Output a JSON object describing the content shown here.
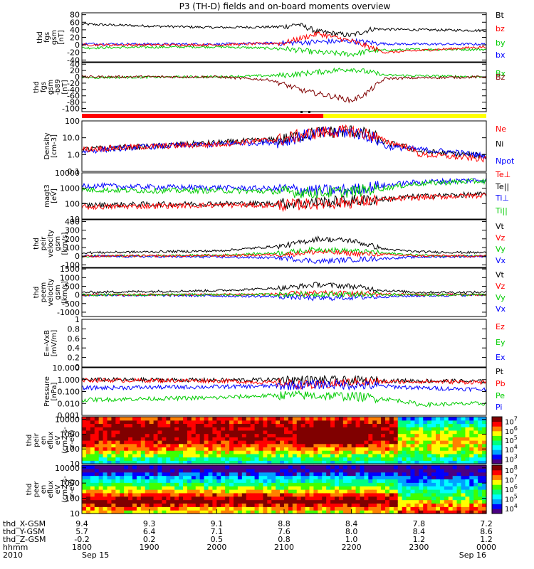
{
  "title": "P3 (TH-D) fields and on-board moments overview",
  "chart_data": [
    {
      "id": "fgs",
      "type": "line",
      "ylabel": [
        "thd",
        "fgs",
        "gsm",
        "[nT]"
      ],
      "yticks": [
        -40,
        -20,
        0,
        20,
        40,
        60,
        80
      ],
      "ylim": [
        -45,
        85
      ],
      "legend": [
        {
          "label": "Bt",
          "color": "#000000"
        },
        {
          "label": "bz",
          "color": "#ff0000"
        },
        {
          "label": "by",
          "color": "#00cc00"
        },
        {
          "label": "bx",
          "color": "#0000ff"
        }
      ],
      "series": [
        {
          "name": "Bt",
          "color": "#000000",
          "x": [
            18.0,
            19.0,
            20.0,
            21.0,
            21.2,
            21.5,
            22.0,
            22.3,
            23.0,
            24.0
          ],
          "values": [
            55,
            50,
            46,
            48,
            55,
            35,
            25,
            42,
            40,
            38
          ]
        },
        {
          "name": "by",
          "color": "#00cc00",
          "x": [
            18.0,
            19.0,
            20.0,
            21.0,
            21.5,
            22.0,
            22.3,
            23.0,
            24.0
          ],
          "values": [
            -8,
            -6,
            -5,
            -10,
            -20,
            -25,
            -15,
            -12,
            -12
          ]
        },
        {
          "name": "bx",
          "color": "#0000ff",
          "x": [
            18.0,
            19.0,
            20.0,
            21.0,
            21.5,
            22.0,
            22.5,
            23.0,
            24.0
          ],
          "values": [
            3,
            2,
            2,
            5,
            8,
            10,
            3,
            2,
            2
          ]
        },
        {
          "name": "bz",
          "color": "#ff0000",
          "x": [
            18.0,
            20.0,
            21.0,
            21.5,
            22.0,
            22.5,
            24.0
          ],
          "values": [
            0,
            0,
            5,
            30,
            10,
            -20,
            -5
          ]
        }
      ]
    },
    {
      "id": "fgs-dsl",
      "type": "line",
      "ylabel": [
        "thd",
        "fgs",
        "gsm",
        "-b89",
        "[nT]"
      ],
      "yticks": [
        -100,
        -80,
        -60,
        -40,
        -20,
        0,
        20,
        40
      ],
      "ylim": [
        -110,
        45
      ],
      "legend": [
        {
          "label": "Bx",
          "color": "#00cc00"
        },
        {
          "label": "Bz",
          "color": "#800000"
        }
      ],
      "series": [
        {
          "name": "Bx",
          "color": "#00cc00",
          "x": [
            18.0,
            20.0,
            21.0,
            21.5,
            22.0,
            22.5,
            24.0
          ],
          "values": [
            -2,
            0,
            5,
            15,
            25,
            5,
            0
          ]
        },
        {
          "name": "Bz",
          "color": "#800000",
          "x": [
            18.0,
            20.0,
            20.8,
            21.3,
            21.8,
            22.0,
            22.2,
            22.5,
            24.0
          ],
          "values": [
            0,
            0,
            -10,
            -45,
            -65,
            -75,
            -55,
            -5,
            0
          ]
        }
      ]
    },
    {
      "id": "density",
      "type": "line",
      "scale": "log",
      "ylabel": [
        "Density",
        "[cm-3]"
      ],
      "yticks": [
        0.1,
        1.0,
        10.0,
        100.0
      ],
      "ylim": [
        0.1,
        100
      ],
      "legend": [
        {
          "label": "Ne",
          "color": "#ff0000"
        },
        {
          "label": "Ni",
          "color": "#000000"
        },
        {
          "label": "Npot",
          "color": "#0000ff"
        }
      ],
      "series": [
        {
          "name": "Ni",
          "color": "#000000",
          "x": [
            18.0,
            19.0,
            20.0,
            21.0,
            21.5,
            22.0,
            22.5,
            23.0,
            24.0
          ],
          "values": [
            2,
            3,
            5,
            8,
            20,
            25,
            5,
            1.5,
            0.8
          ]
        },
        {
          "name": "Npot",
          "color": "#0000ff",
          "x": [
            18.0,
            19.0,
            20.0,
            21.0,
            21.5,
            22.0,
            22.5,
            23.0,
            24.0
          ],
          "values": [
            1.5,
            3,
            4,
            6,
            18,
            22,
            3,
            2,
            0.8
          ]
        },
        {
          "name": "Ne",
          "color": "#ff0000",
          "x": [
            18.0,
            19.0,
            20.0,
            21.0,
            21.5,
            22.0,
            22.5,
            23.0,
            24.0
          ],
          "values": [
            2,
            3,
            4,
            8,
            20,
            25,
            6,
            1,
            0.5
          ]
        }
      ]
    },
    {
      "id": "temperature",
      "type": "line",
      "scale": "log",
      "ylabel": [
        "magt3",
        "[eV]"
      ],
      "yticks": [
        10,
        100,
        1000,
        10000
      ],
      "ylim": [
        10,
        10000
      ],
      "legend": [
        {
          "label": "Te⊥",
          "color": "#ff0000"
        },
        {
          "label": "Te||",
          "color": "#000000"
        },
        {
          "label": "Ti⊥",
          "color": "#0000ff"
        },
        {
          "label": "Ti||",
          "color": "#00cc00"
        }
      ],
      "series": [
        {
          "name": "Ti⊥",
          "color": "#0000ff",
          "x": [
            18.0,
            19.0,
            20.0,
            21.0,
            21.5,
            22.0,
            22.5,
            23.0,
            24.0
          ],
          "values": [
            1500,
            1200,
            1100,
            900,
            700,
            800,
            1500,
            2500,
            3500
          ]
        },
        {
          "name": "Ti||",
          "color": "#00cc00",
          "x": [
            18.0,
            19.0,
            20.0,
            21.0,
            21.5,
            22.0,
            22.5,
            23.0,
            24.0
          ],
          "values": [
            800,
            700,
            700,
            600,
            500,
            600,
            1000,
            2000,
            3000
          ]
        },
        {
          "name": "Te||",
          "color": "#000000",
          "x": [
            18.0,
            19.0,
            20.0,
            21.0,
            21.5,
            22.0,
            22.5,
            23.0,
            24.0
          ],
          "values": [
            80,
            90,
            100,
            100,
            120,
            150,
            200,
            300,
            400
          ]
        },
        {
          "name": "Te⊥",
          "color": "#ff0000",
          "x": [
            18.0,
            19.0,
            20.0,
            21.0,
            21.5,
            22.0,
            22.5,
            23.0,
            24.0
          ],
          "values": [
            60,
            70,
            80,
            80,
            100,
            120,
            180,
            250,
            350
          ]
        }
      ]
    },
    {
      "id": "peir-velocity",
      "type": "line",
      "ylabel": [
        "thd",
        "peir",
        "velocity",
        "gsm",
        "[km/s]"
      ],
      "yticks": [
        -100,
        0,
        100,
        200,
        300,
        400
      ],
      "ylim": [
        -130,
        420
      ],
      "legend": [
        {
          "label": "Vt",
          "color": "#000000"
        },
        {
          "label": "Vz",
          "color": "#ff0000"
        },
        {
          "label": "Vy",
          "color": "#00cc00"
        },
        {
          "label": "Vx",
          "color": "#0000ff"
        }
      ],
      "series": [
        {
          "name": "Vt",
          "color": "#000000",
          "x": [
            18.0,
            19.0,
            20.0,
            21.0,
            21.5,
            22.0,
            22.5,
            23.0,
            24.0
          ],
          "values": [
            40,
            50,
            60,
            120,
            200,
            180,
            80,
            50,
            40
          ]
        },
        {
          "name": "Vy",
          "color": "#00cc00",
          "x": [
            18.0,
            20.0,
            21.0,
            21.5,
            22.0,
            23.0,
            24.0
          ],
          "values": [
            0,
            10,
            40,
            80,
            60,
            10,
            0
          ]
        },
        {
          "name": "Vx",
          "color": "#0000ff",
          "x": [
            18.0,
            20.0,
            21.0,
            21.5,
            22.0,
            23.0,
            24.0
          ],
          "values": [
            0,
            -10,
            -20,
            -60,
            -40,
            -10,
            0
          ]
        },
        {
          "name": "Vz",
          "color": "#ff0000",
          "x": [
            18.0,
            20.0,
            21.0,
            21.5,
            22.0,
            23.0,
            24.0
          ],
          "values": [
            0,
            5,
            20,
            50,
            30,
            5,
            0
          ]
        }
      ]
    },
    {
      "id": "peem-velocity",
      "type": "line",
      "ylabel": [
        "thd",
        "peem",
        "velocity",
        "gsm",
        "[km/s]"
      ],
      "yticks": [
        -1000,
        -500,
        0,
        500,
        1000,
        1500
      ],
      "ylim": [
        -1250,
        1550
      ],
      "legend": [
        {
          "label": "Vt",
          "color": "#000000"
        },
        {
          "label": "Vz",
          "color": "#ff0000"
        },
        {
          "label": "Vy",
          "color": "#00cc00"
        },
        {
          "label": "Vx",
          "color": "#0000ff"
        }
      ],
      "series": [
        {
          "name": "Vt",
          "color": "#000000",
          "x": [
            18.0,
            19.0,
            20.0,
            21.0,
            21.5,
            22.0,
            22.5,
            23.0,
            24.0
          ],
          "values": [
            150,
            200,
            250,
            400,
            600,
            500,
            250,
            150,
            150
          ]
        },
        {
          "name": "Vx",
          "color": "#0000ff",
          "x": [
            18.0,
            20.0,
            21.0,
            21.5,
            22.0,
            23.0,
            24.0
          ],
          "values": [
            0,
            -50,
            -100,
            -200,
            -150,
            -50,
            0
          ]
        },
        {
          "name": "Vz",
          "color": "#ff0000",
          "x": [
            18.0,
            20.0,
            21.0,
            21.5,
            22.0,
            23.0,
            24.0
          ],
          "values": [
            0,
            20,
            50,
            100,
            80,
            20,
            0
          ]
        },
        {
          "name": "Vy",
          "color": "#00cc00",
          "x": [
            18.0,
            20.0,
            21.0,
            21.5,
            22.0,
            23.0,
            24.0
          ],
          "values": [
            0,
            10,
            30,
            50,
            40,
            10,
            0
          ]
        }
      ]
    },
    {
      "id": "efield",
      "type": "line",
      "ylabel": [
        "E=-VxB",
        "[mV/m]"
      ],
      "yticks": [
        0.0,
        0.2,
        0.4,
        0.6,
        0.8,
        1.0
      ],
      "ylim": [
        0,
        1
      ],
      "legend": [
        {
          "label": "Ez",
          "color": "#ff0000"
        },
        {
          "label": "Ey",
          "color": "#00cc00"
        },
        {
          "label": "Ex",
          "color": "#0000ff"
        }
      ],
      "series": []
    },
    {
      "id": "pressure",
      "type": "line",
      "scale": "log",
      "ylabel": [
        "Pressure",
        "[nPa]"
      ],
      "yticks": [
        0.001,
        0.01,
        0.1,
        1.0,
        10.0
      ],
      "tick_labels": [
        "0.001",
        "0.010",
        "0.100",
        "1.000",
        "10.000"
      ],
      "ylim": [
        0.001,
        10
      ],
      "legend": [
        {
          "label": "Pt",
          "color": "#000000"
        },
        {
          "label": "Pb",
          "color": "#ff0000"
        },
        {
          "label": "Pe",
          "color": "#00cc00"
        },
        {
          "label": "Pi",
          "color": "#0000ff"
        }
      ],
      "series": [
        {
          "name": "Pt",
          "color": "#000000",
          "x": [
            18.0,
            20.0,
            21.0,
            22.0,
            23.0,
            24.0
          ],
          "values": [
            1.0,
            0.9,
            1.0,
            0.8,
            0.8,
            0.7
          ]
        },
        {
          "name": "Pb",
          "color": "#ff0000",
          "x": [
            18.0,
            20.0,
            21.0,
            21.5,
            22.0,
            23.0,
            24.0
          ],
          "values": [
            0.9,
            0.8,
            0.5,
            0.3,
            0.6,
            0.7,
            0.6
          ]
        },
        {
          "name": "Pi",
          "color": "#0000ff",
          "x": [
            18.0,
            20.0,
            21.0,
            21.5,
            22.0,
            23.0,
            24.0
          ],
          "values": [
            0.2,
            0.25,
            0.3,
            0.4,
            0.35,
            0.2,
            0.15
          ]
        },
        {
          "name": "Pe",
          "color": "#00cc00",
          "x": [
            18.0,
            20.0,
            21.0,
            22.0,
            23.0,
            24.0
          ],
          "values": [
            0.02,
            0.03,
            0.05,
            0.04,
            0.008,
            0.01
          ]
        }
      ]
    },
    {
      "id": "peir-eflux",
      "type": "heatmap",
      "scale": "log",
      "ylabel": [
        "thd",
        "peir",
        "en",
        "eflux",
        "eV",
        "(cm2-s-",
        "sr-eV)"
      ],
      "yticks": [
        10,
        100,
        1000,
        10000
      ],
      "ylim": [
        10,
        15000
      ],
      "colorbar_labels": [
        "10^3",
        "10^4",
        "10^5",
        "10^6",
        "10^7"
      ],
      "colorbar_exponents": [
        3,
        4,
        5,
        6,
        7
      ]
    },
    {
      "id": "peer-eflux",
      "type": "heatmap",
      "scale": "log",
      "ylabel": [
        "thd",
        "peer",
        "en",
        "eflux",
        "eV",
        "(cm2-s-",
        "sr-eV)"
      ],
      "yticks": [
        10,
        100,
        1000,
        10000
      ],
      "ylim": [
        10,
        15000
      ],
      "colorbar_labels": [
        "10^4",
        "10^5",
        "10^6",
        "10^7",
        "10^8"
      ],
      "colorbar_exponents": [
        4,
        5,
        6,
        7,
        8
      ]
    }
  ],
  "xaxis": {
    "range": [
      1800,
      2400
    ],
    "row_labels": [
      "thd_X-GSM",
      "thd_Y-GSM",
      "thd_Z-GSM",
      "hhmm",
      "2010"
    ],
    "ticks": [
      {
        "x": 1800,
        "rows": [
          "9.4",
          "5.7",
          "-0.2",
          "1800",
          "Sep 15"
        ]
      },
      {
        "x": 1900,
        "rows": [
          "9.3",
          "6.4",
          "0.2",
          "1900",
          ""
        ]
      },
      {
        "x": 2000,
        "rows": [
          "9.1",
          "7.1",
          "0.5",
          "2000",
          ""
        ]
      },
      {
        "x": 2100,
        "rows": [
          "8.8",
          "7.6",
          "0.8",
          "2100",
          ""
        ]
      },
      {
        "x": 2200,
        "rows": [
          "8.4",
          "8.0",
          "1.0",
          "2200",
          ""
        ]
      },
      {
        "x": 2300,
        "rows": [
          "7.8",
          "8.4",
          "1.2",
          "2300",
          ""
        ]
      },
      {
        "x": 2400,
        "rows": [
          "7.2",
          "8.6",
          "1.2",
          "0000",
          "Sep 16"
        ]
      }
    ]
  },
  "mode_bar": {
    "segments": [
      {
        "x0": 1800,
        "x1": 2135,
        "color": "#ff0000"
      },
      {
        "x0": 2135,
        "x1": 2400,
        "color": "#ffff00"
      }
    ]
  }
}
